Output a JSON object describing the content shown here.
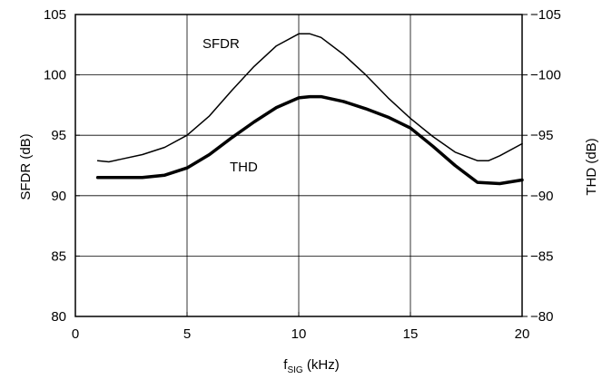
{
  "chart_data": {
    "type": "line",
    "title": "",
    "xlabel": {
      "main": "f",
      "sub": "SIG",
      "suffix": " (kHz)"
    },
    "ylabel_left": "SFDR (dB)",
    "ylabel_right": "THD (dB)",
    "xlim": [
      0,
      20
    ],
    "ylim_left": [
      80,
      105
    ],
    "ylim_right": [
      -80,
      -105
    ],
    "x_ticks": [
      "0",
      "5",
      "10",
      "15",
      "20"
    ],
    "x_tick_values": [
      0,
      5,
      10,
      15,
      20
    ],
    "y_left_ticks": [
      "80",
      "85",
      "90",
      "95",
      "100",
      "105"
    ],
    "y_left_tick_values": [
      80,
      85,
      90,
      95,
      100,
      105
    ],
    "y_right_ticks": [
      "−80",
      "−85",
      "−90",
      "−95",
      "−100",
      "−105"
    ],
    "y_right_tick_values": [
      -80,
      -85,
      -90,
      -95,
      -100,
      -105
    ],
    "grid": true,
    "series": [
      {
        "name": "SFDR",
        "axis": "left",
        "x": [
          1,
          1.5,
          2,
          3,
          4,
          5,
          6,
          7,
          8,
          9,
          10,
          10.5,
          11,
          12,
          13,
          14,
          15,
          16,
          17,
          18,
          18.5,
          19,
          20
        ],
        "y": [
          92.9,
          92.8,
          93.0,
          93.4,
          94.0,
          95.0,
          96.6,
          98.7,
          100.7,
          102.4,
          103.4,
          103.4,
          103.1,
          101.7,
          100.0,
          98.1,
          96.4,
          94.9,
          93.6,
          92.9,
          92.9,
          93.3,
          94.3
        ]
      },
      {
        "name": "THD",
        "axis": "left",
        "x": [
          1,
          2,
          3,
          4,
          5,
          6,
          7,
          8,
          9,
          10,
          10.5,
          11,
          12,
          13,
          14,
          15,
          16,
          17,
          18,
          19,
          20
        ],
        "y": [
          91.5,
          91.5,
          91.5,
          91.7,
          92.3,
          93.4,
          94.8,
          96.1,
          97.3,
          98.1,
          98.2,
          98.2,
          97.8,
          97.2,
          96.5,
          95.6,
          94.1,
          92.5,
          91.1,
          91.0,
          91.3
        ]
      }
    ],
    "annotations": [
      "SFDR",
      "THD"
    ]
  }
}
